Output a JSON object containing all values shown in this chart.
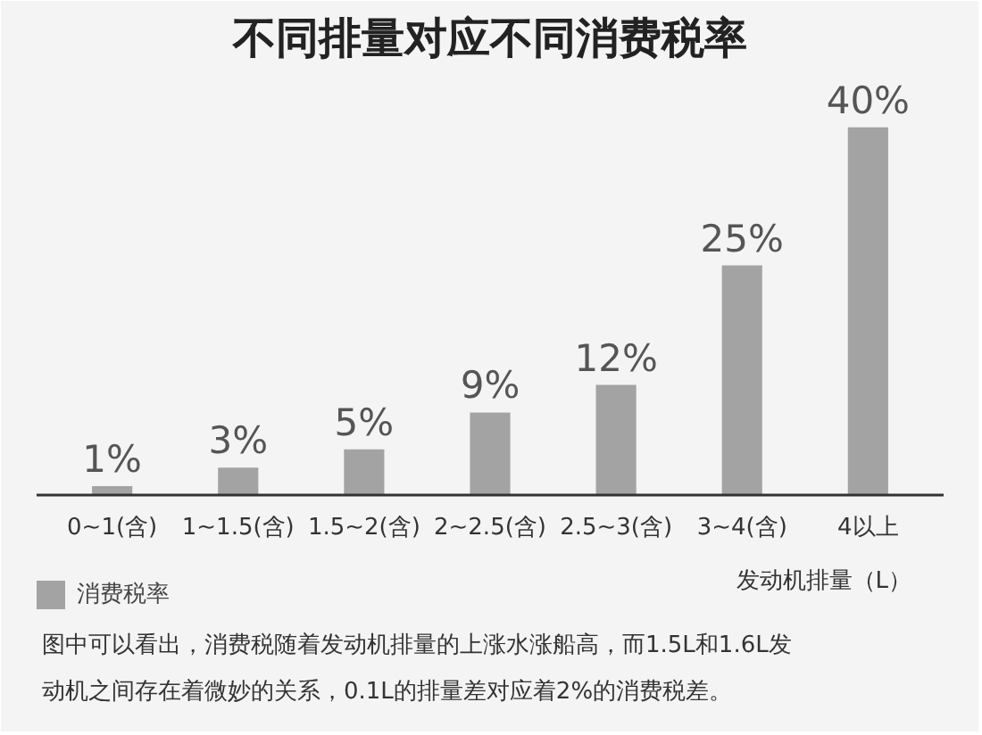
{
  "chart_data": {
    "type": "bar",
    "title": "不同排量对应不同消费税率",
    "xlabel": "发动机排量（L）",
    "categories": [
      "0~1(含)",
      "1~1.5(含)",
      "1.5~2(含)",
      "2~2.5(含)",
      "2.5~3(含)",
      "3~4(含)",
      "4以上"
    ],
    "series": [
      {
        "name": "消费税率",
        "color": "#a3a3a3",
        "values": [
          1,
          3,
          5,
          9,
          12,
          25,
          40
        ],
        "value_labels": [
          "1%",
          "3%",
          "5%",
          "9%",
          "12%",
          "25%",
          "40%"
        ]
      }
    ],
    "legend": "bottom left",
    "grid": false,
    "annotations": [
      "图中可以看出，消费税随着发动机排量的上涨水涨船高，而1.5L和1.6L发动机之间存在着微妙的关系，0.1L的排量差对应着2%的消费税差。"
    ]
  }
}
